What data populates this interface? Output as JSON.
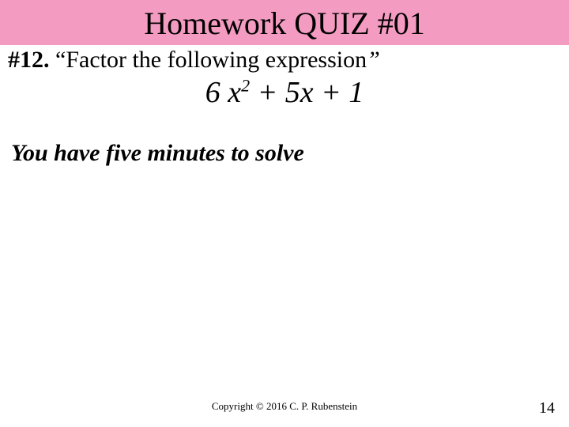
{
  "slide": {
    "title": "Homework QUIZ #01",
    "title_bg": "#f49bc1",
    "title_fontsize": 40,
    "question_number": "#12.",
    "open_quote": "“",
    "prompt": "Factor the following expression",
    "close_quote": "”",
    "expression": {
      "part1": "6 x",
      "exp": "2",
      "part2": " + 5x + 1"
    },
    "timer": "You have five minutes to solve",
    "copyright": "Copyright © 2016 C. P. Rubenstein",
    "page_number": "14",
    "body_bg": "#ffffff",
    "text_color": "#000000"
  }
}
